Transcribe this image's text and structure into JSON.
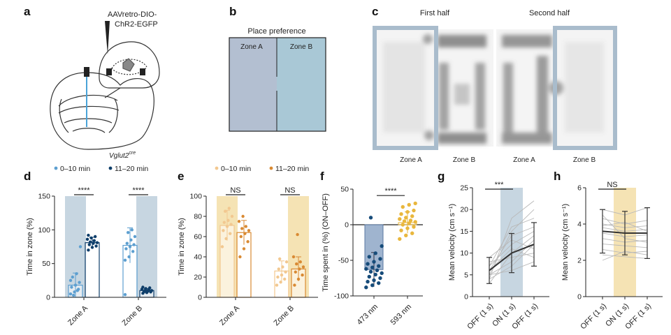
{
  "colors": {
    "zoneA_fill": "#b3bfd1",
    "zoneB_fill": "#a9c8d6",
    "shade_blue": "#c7d6e1",
    "shade_tan": "#f5e3b4",
    "light_blue": "#5d9fd0",
    "dark_blue": "#0e3e6a",
    "light_orange": "#f2c890",
    "dark_orange": "#d98a33",
    "navy_dot": "#174c7a",
    "gold_dot": "#e9b73d",
    "frame_blue": "#a9bccc",
    "heat_dark": "#6d6d6d"
  },
  "panel_labels": [
    "a",
    "b",
    "c",
    "d",
    "e",
    "f",
    "g",
    "h"
  ],
  "panel_a": {
    "virus_line1": "AAVretro-DIO-",
    "virus_line2": "ChR2-EGFP",
    "genotype": "Vglut2",
    "genotype_sup": "cre"
  },
  "panel_b": {
    "title": "Place preference",
    "zone_a": "Zone A",
    "zone_b": "Zone B"
  },
  "panel_c": {
    "first_half": "First half",
    "second_half": "Second half",
    "labels": [
      "Zone A",
      "Zone B",
      "Zone A",
      "Zone B"
    ]
  },
  "chart_data": [
    {
      "panel": "d",
      "type": "bar",
      "ylabel": "Time in zone (%)",
      "ylim": [
        0,
        150
      ],
      "yticks": [
        0,
        50,
        100,
        150
      ],
      "categories": [
        "Zone A",
        "Zone B"
      ],
      "legend": [
        "0–10 min",
        "11–20 min"
      ],
      "series": [
        {
          "name": "0–10 min",
          "values": [
            18,
            77
          ],
          "sd": [
            18,
            26
          ],
          "points": [
            [
              5,
              8,
              12,
              15,
              18,
              22,
              30,
              35,
              75,
              3,
              10,
              25
            ],
            [
              55,
              60,
              68,
              72,
              75,
              78,
              80,
              85,
              90,
              96,
              100,
              4
            ]
          ]
        },
        {
          "name": "11–20 min",
          "values": [
            81,
            10
          ],
          "sd": [
            8,
            3
          ],
          "points": [
            [
              70,
              74,
              76,
              78,
              80,
              81,
              82,
              84,
              86,
              88,
              90,
              92
            ],
            [
              6,
              7,
              8,
              8,
              9,
              10,
              10,
              11,
              12,
              13,
              14,
              15
            ]
          ]
        }
      ],
      "shaded": [
        "Zone A",
        "Zone B"
      ],
      "significance": [
        "****",
        "****"
      ]
    },
    {
      "panel": "e",
      "type": "bar",
      "ylabel": "Time in zone (%)",
      "ylim": [
        0,
        100
      ],
      "yticks": [
        0,
        20,
        40,
        60,
        80,
        100
      ],
      "categories": [
        "Zone A",
        "Zone B"
      ],
      "legend": [
        "0–10 min",
        "11–20 min"
      ],
      "series": [
        {
          "name": "0–10 min",
          "values": [
            71,
            26
          ],
          "sd": [
            15,
            10
          ],
          "points": [
            [
              50,
              58,
              63,
              66,
              70,
              72,
              74,
              76,
              80,
              85,
              88
            ],
            [
              12,
              15,
              18,
              20,
              22,
              25,
              28,
              30,
              35,
              38
            ]
          ]
        },
        {
          "name": "11–20 min",
          "values": [
            64,
            28
          ],
          "sd": [
            12,
            12
          ],
          "points": [
            [
              40,
              48,
              55,
              60,
              63,
              66,
              68,
              70,
              75,
              80
            ],
            [
              12,
              18,
              22,
              25,
              28,
              30,
              33,
              35,
              40,
              62
            ]
          ]
        }
      ],
      "shaded": [
        "Zone A",
        "Zone B"
      ],
      "significance": [
        "NS",
        "NS"
      ]
    },
    {
      "panel": "f",
      "type": "bar",
      "ylabel": "Time spent in (%) (ON–OFF)",
      "ylim": [
        -100,
        50
      ],
      "yticks": [
        -100,
        -50,
        0,
        50
      ],
      "categories": [
        "473 nm",
        "593 nm"
      ],
      "values": [
        -63,
        3
      ],
      "sd": [
        24,
        15
      ],
      "points": [
        [
          -88,
          -85,
          -82,
          -80,
          -78,
          -75,
          -73,
          -70,
          -68,
          -66,
          -64,
          -62,
          -60,
          -58,
          -55,
          -52,
          -48,
          -45,
          -40,
          -30,
          10
        ],
        [
          -20,
          -15,
          -12,
          -8,
          -5,
          -3,
          0,
          2,
          4,
          5,
          6,
          8,
          10,
          12,
          15,
          18,
          20,
          25,
          28,
          30
        ]
      ],
      "significance": "****"
    },
    {
      "panel": "g",
      "type": "line",
      "ylabel": "Mean velocity (cm s⁻¹)",
      "ylim": [
        0,
        25
      ],
      "yticks": [
        0,
        5,
        10,
        15,
        20,
        25
      ],
      "categories": [
        "OFF (1 s)",
        "ON (1 s)",
        "OFF (1 s)"
      ],
      "mean": [
        6,
        10,
        12
      ],
      "sd": [
        3,
        4.5,
        5
      ],
      "individuals": [
        [
          4,
          18,
          22
        ],
        [
          5,
          15,
          20
        ],
        [
          6,
          14,
          16
        ],
        [
          7,
          12,
          15
        ],
        [
          3,
          10,
          14
        ],
        [
          8,
          9,
          10
        ],
        [
          5,
          8,
          13
        ],
        [
          6,
          11,
          9
        ],
        [
          4,
          7,
          12
        ],
        [
          9,
          13,
          11
        ],
        [
          5,
          6,
          8
        ],
        [
          7,
          16,
          18
        ]
      ],
      "shaded": "ON (1 s)",
      "significance": "***"
    },
    {
      "panel": "h",
      "type": "line",
      "ylabel": "Mean velocity (cm s⁻¹)",
      "ylim": [
        0,
        6
      ],
      "yticks": [
        0,
        2,
        4,
        6
      ],
      "categories": [
        "OFF (1 s)",
        "ON (1 s)",
        "OFF (1 s)"
      ],
      "mean": [
        3.6,
        3.5,
        3.5
      ],
      "sd": [
        1.2,
        1.2,
        1.4
      ],
      "individuals": [
        [
          4.8,
          4.5,
          4.9
        ],
        [
          4.3,
          4.0,
          4.2
        ],
        [
          4.0,
          3.8,
          3.9
        ],
        [
          3.8,
          3.6,
          3.7
        ],
        [
          3.5,
          3.3,
          3.4
        ],
        [
          3.2,
          3.0,
          3.1
        ],
        [
          2.9,
          2.8,
          2.7
        ],
        [
          2.6,
          2.4,
          2.5
        ],
        [
          2.3,
          2.2,
          2.1
        ],
        [
          3.9,
          4.1,
          3.6
        ],
        [
          4.5,
          3.2,
          3.0
        ],
        [
          2.0,
          2.5,
          2.3
        ]
      ],
      "shaded": "ON (1 s)",
      "significance": "NS"
    }
  ]
}
